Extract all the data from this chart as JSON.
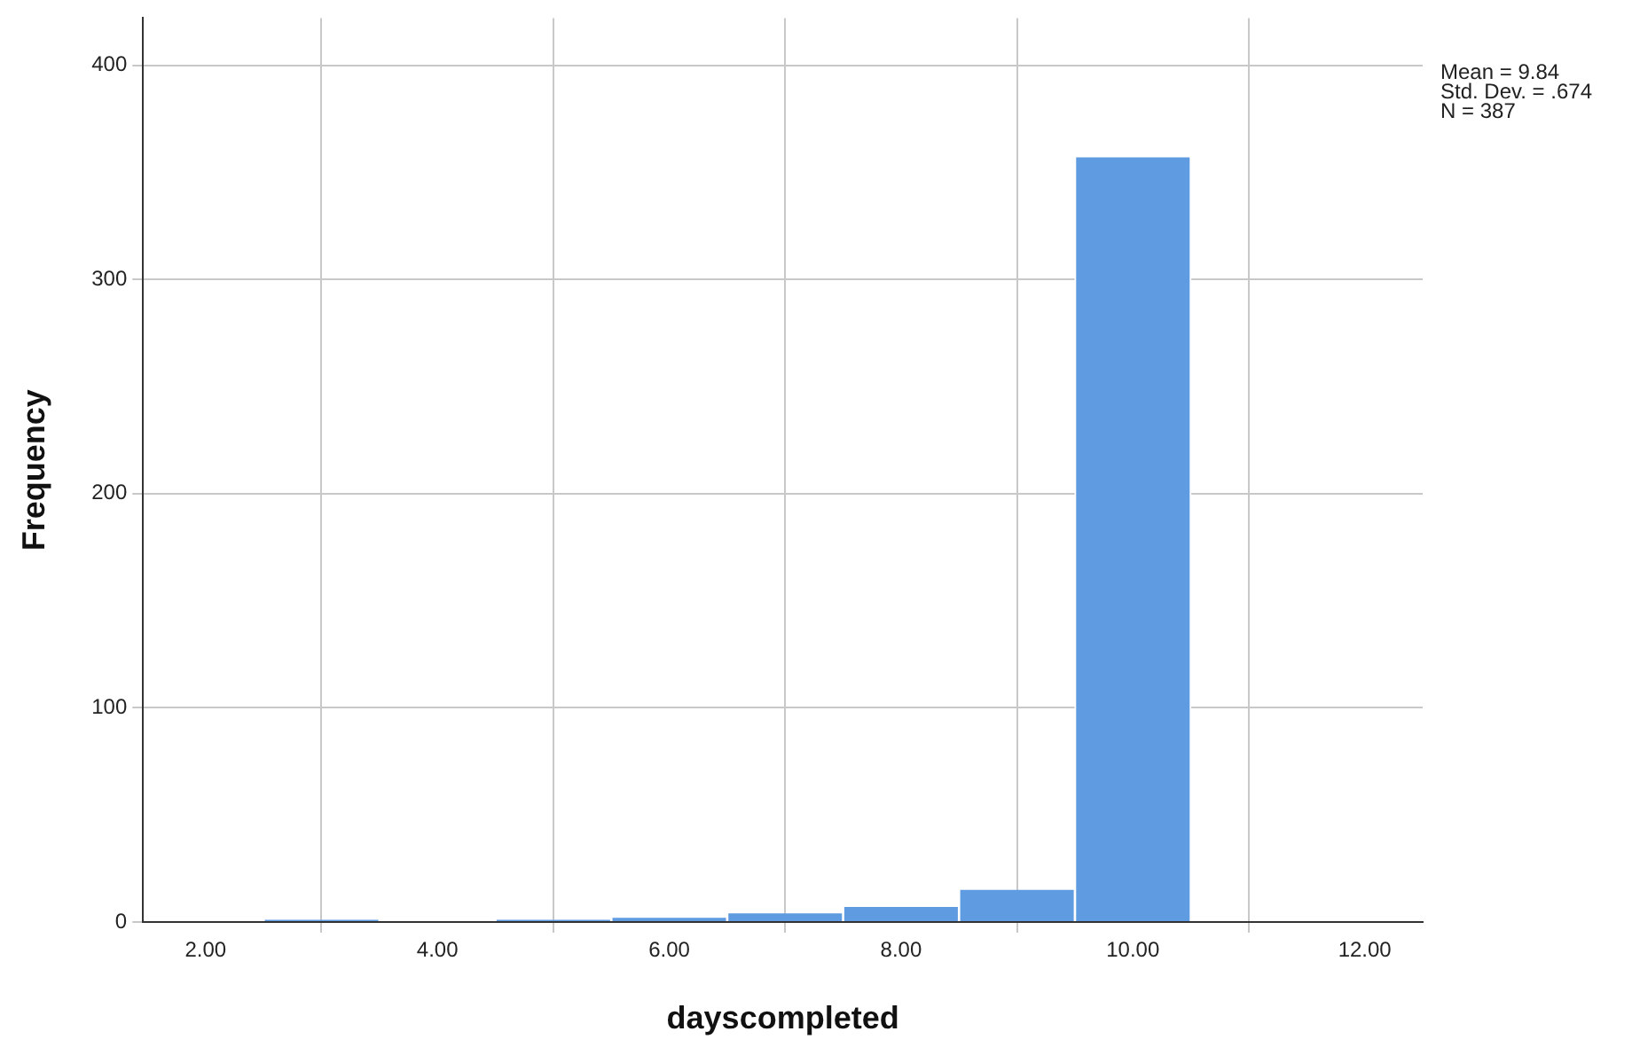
{
  "chart_data": {
    "type": "histogram",
    "xlabel": "dayscompleted",
    "ylabel": "Frequency",
    "bins": [
      2.5,
      3.5,
      4.5,
      5.5,
      6.5,
      7.5,
      8.5,
      9.5,
      10.5
    ],
    "values": [
      1,
      0,
      1,
      2,
      4,
      7,
      15,
      357
    ],
    "color": "#5f9be1",
    "xlim": [
      1.46,
      12.5
    ],
    "ylim": [
      0,
      422
    ],
    "xticks": [
      {
        "value": 2,
        "label": "2.00"
      },
      {
        "value": 4,
        "label": "4.00"
      },
      {
        "value": 6,
        "label": "6.00"
      },
      {
        "value": 8,
        "label": "8.00"
      },
      {
        "value": 10,
        "label": "10.00"
      },
      {
        "value": 12,
        "label": "12.00"
      }
    ],
    "yticks": [
      0,
      100,
      200,
      300,
      400
    ],
    "grid": true,
    "legend": false,
    "annotations": [
      "Mean = 9.84",
      "Std. Dev. = .674",
      "N = 387"
    ]
  }
}
